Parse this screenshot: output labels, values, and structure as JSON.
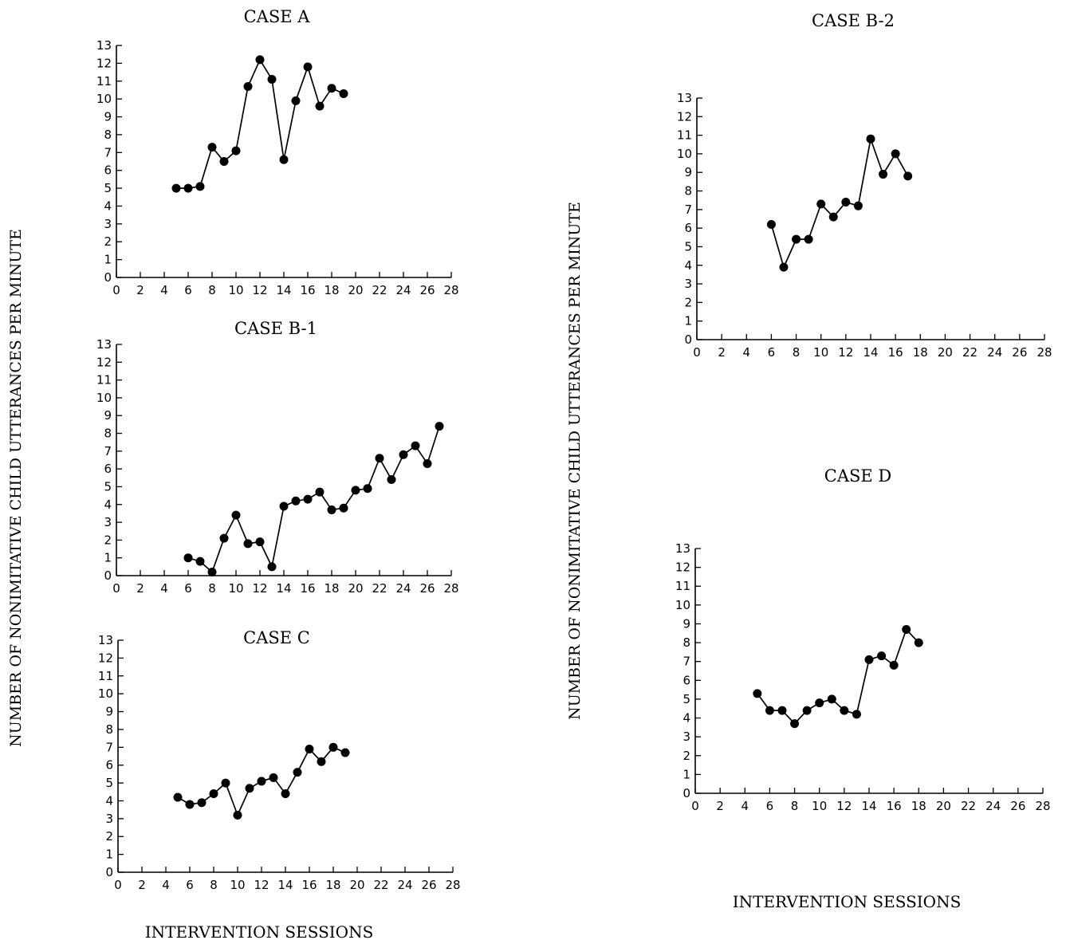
{
  "chart_data": [
    {
      "type": "line",
      "title": "CASE A",
      "xlim": [
        0,
        28
      ],
      "ylim": [
        0,
        13
      ],
      "x_ticks": [
        0,
        2,
        4,
        6,
        8,
        10,
        12,
        14,
        16,
        18,
        20,
        22,
        24,
        26,
        28
      ],
      "y_ticks": [
        0,
        1,
        2,
        3,
        4,
        5,
        6,
        7,
        8,
        9,
        10,
        11,
        12,
        13
      ],
      "x": [
        5,
        6,
        7,
        8,
        9,
        10,
        11,
        12,
        13,
        14,
        15,
        16,
        17,
        18,
        19
      ],
      "y": [
        5.0,
        5.0,
        5.1,
        7.3,
        6.5,
        7.1,
        10.7,
        12.2,
        11.1,
        6.6,
        9.9,
        11.8,
        9.6,
        10.6,
        10.3
      ]
    },
    {
      "type": "line",
      "title": "CASE B-1",
      "xlim": [
        0,
        28
      ],
      "ylim": [
        0,
        13
      ],
      "x_ticks": [
        0,
        2,
        4,
        6,
        8,
        10,
        12,
        14,
        16,
        18,
        20,
        22,
        24,
        26,
        28
      ],
      "y_ticks": [
        0,
        1,
        2,
        3,
        4,
        5,
        6,
        7,
        8,
        9,
        10,
        11,
        12,
        13
      ],
      "x": [
        6,
        7,
        8,
        9,
        10,
        11,
        12,
        13,
        14,
        15,
        16,
        17,
        18,
        19,
        20,
        21,
        22,
        23,
        24,
        25,
        26,
        27
      ],
      "y": [
        1.0,
        0.8,
        0.2,
        2.1,
        3.4,
        1.8,
        1.9,
        0.5,
        3.9,
        4.2,
        4.3,
        4.7,
        3.7,
        3.8,
        4.8,
        4.9,
        6.6,
        5.4,
        6.8,
        7.3,
        6.3,
        8.4
      ]
    },
    {
      "type": "line",
      "title": "CASE C",
      "xlim": [
        0,
        28
      ],
      "ylim": [
        0,
        13
      ],
      "x_ticks": [
        0,
        2,
        4,
        6,
        8,
        10,
        12,
        14,
        16,
        18,
        20,
        22,
        24,
        26,
        28
      ],
      "y_ticks": [
        0,
        1,
        2,
        3,
        4,
        5,
        6,
        7,
        8,
        9,
        10,
        11,
        12,
        13
      ],
      "x": [
        5,
        6,
        7,
        8,
        9,
        10,
        11,
        12,
        13,
        14,
        15,
        16,
        17,
        18,
        19
      ],
      "y": [
        4.2,
        3.8,
        3.9,
        4.4,
        5.0,
        3.2,
        4.7,
        5.1,
        5.3,
        4.4,
        5.6,
        6.9,
        6.2,
        7.0,
        6.7
      ]
    },
    {
      "type": "line",
      "title": "CASE B-2",
      "xlim": [
        0,
        28
      ],
      "ylim": [
        0,
        13
      ],
      "x_ticks": [
        0,
        2,
        4,
        6,
        8,
        10,
        12,
        14,
        16,
        18,
        20,
        22,
        24,
        26,
        28
      ],
      "y_ticks": [
        0,
        1,
        2,
        3,
        4,
        5,
        6,
        7,
        8,
        9,
        10,
        11,
        12,
        13
      ],
      "x": [
        6,
        7,
        8,
        9,
        10,
        11,
        12,
        13,
        14,
        15,
        16,
        17
      ],
      "y": [
        6.2,
        3.9,
        5.4,
        5.4,
        7.3,
        6.6,
        7.4,
        7.2,
        10.8,
        8.9,
        10.0,
        8.8
      ]
    },
    {
      "type": "line",
      "title": "CASE D",
      "xlim": [
        0,
        28
      ],
      "ylim": [
        0,
        13
      ],
      "x_ticks": [
        0,
        2,
        4,
        6,
        8,
        10,
        12,
        14,
        16,
        18,
        20,
        22,
        24,
        26,
        28
      ],
      "y_ticks": [
        0,
        1,
        2,
        3,
        4,
        5,
        6,
        7,
        8,
        9,
        10,
        11,
        12,
        13
      ],
      "x": [
        5,
        6,
        7,
        8,
        9,
        10,
        11,
        12,
        13,
        14,
        15,
        16,
        17,
        18
      ],
      "y": [
        5.3,
        4.4,
        4.4,
        3.7,
        4.4,
        4.8,
        5.0,
        4.4,
        4.2,
        7.1,
        7.3,
        6.8,
        8.7,
        8.0
      ]
    }
  ],
  "figure": {
    "left_ylabel": "NUMBER OF NONIMITATIVE CHILD UTTERANCES PER MINUTE",
    "right_ylabel": "NUMBER OF NONIMITATIVE CHILD UTTERANCES PER MINUTE",
    "left_xlabel": "INTERVENTION SESSIONS",
    "right_xlabel": "INTERVENTION SESSIONS"
  }
}
